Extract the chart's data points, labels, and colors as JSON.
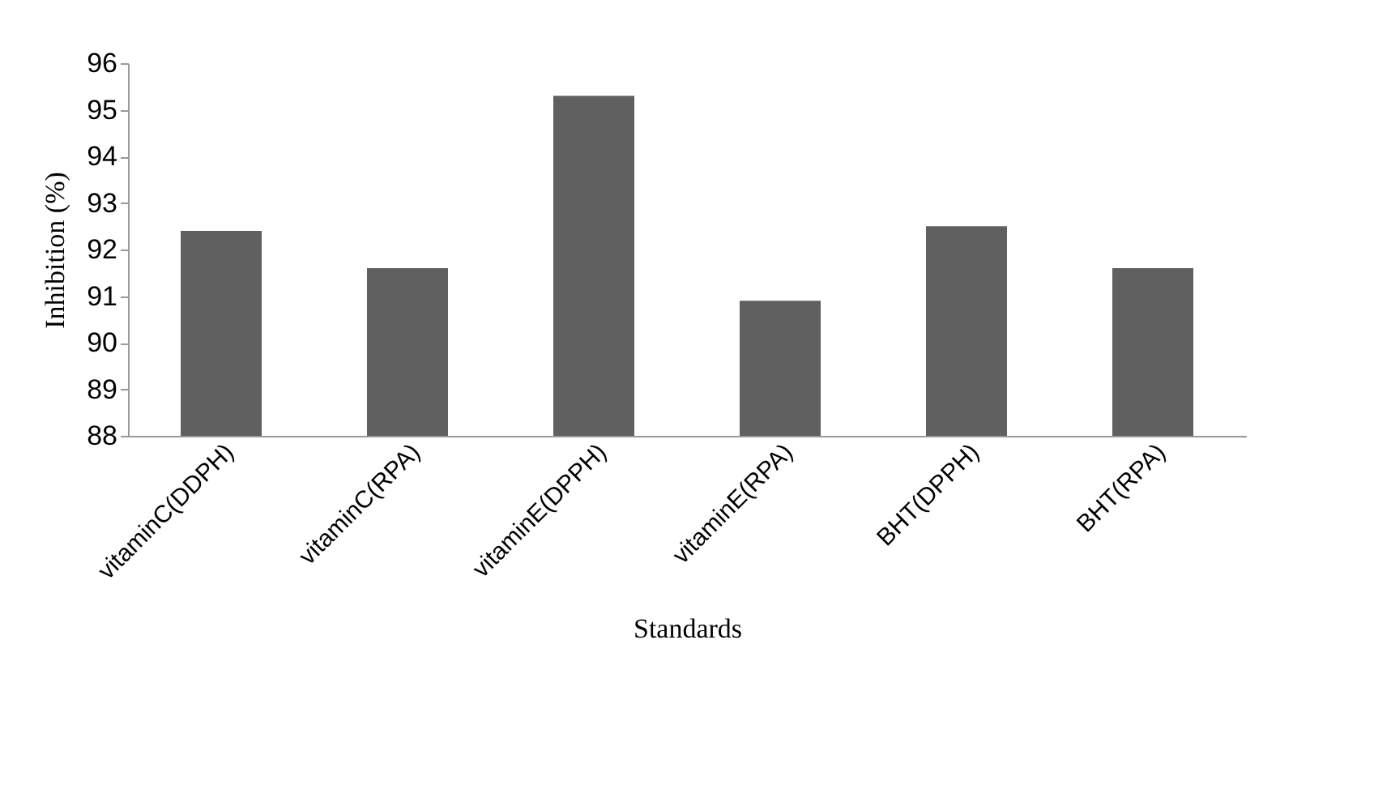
{
  "chart_data": {
    "type": "bar",
    "xlabel": "Standards",
    "ylabel": "Inhibition (%)",
    "categories": [
      "vitaminC(DDPH)",
      "vitaminC(RPA)",
      "vitaminE(DPPH)",
      "vitaminE(RPA)",
      "BHT(DPPH)",
      "BHT(RPA)"
    ],
    "values": [
      92.4,
      91.6,
      95.3,
      90.9,
      92.5,
      91.6
    ],
    "color": "#606060",
    "ylim": [
      88,
      96
    ],
    "yticks": [
      88,
      89,
      90,
      91,
      92,
      93,
      94,
      95,
      96
    ],
    "grid": false
  }
}
